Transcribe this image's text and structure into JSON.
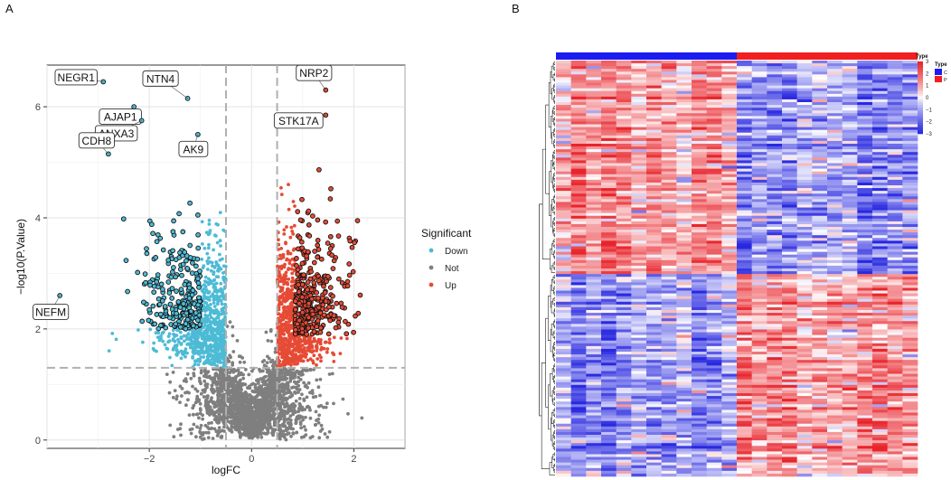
{
  "panels": {
    "a_label": "A",
    "b_label": "B"
  },
  "chart_data": [
    {
      "type": "scatter",
      "subtype": "volcano",
      "title": "",
      "xlabel": "logFC",
      "ylabel": "−log10(P.Value)",
      "xlim": [
        -4,
        3
      ],
      "ylim": [
        -0.15,
        6.75
      ],
      "x_ticks": [
        -2,
        0,
        2
      ],
      "x_tick_labels": [
        "−2",
        "0",
        "2"
      ],
      "y_ticks": [
        0,
        2,
        4,
        6
      ],
      "y_tick_labels": [
        "0",
        "2",
        "4",
        "6"
      ],
      "grid": true,
      "thresholds": {
        "logFC": [
          -0.5,
          0.5
        ],
        "neg_log10_p": 1.3
      },
      "legend": {
        "title": "Significant",
        "position": "right",
        "entries": [
          {
            "name": "Down",
            "color": "#4dbbd5"
          },
          {
            "name": "Not",
            "color": "#7f7f7f"
          },
          {
            "name": "Up",
            "color": "#e64b35"
          }
        ]
      },
      "labeled_genes": [
        {
          "name": "NEGR1",
          "x": -2.9,
          "y": 6.45
        },
        {
          "name": "AJAP1",
          "x": -2.3,
          "y": 6.0
        },
        {
          "name": "NTN4",
          "x": -1.25,
          "y": 6.15
        },
        {
          "name": "ANXA3",
          "x": -2.15,
          "y": 5.75
        },
        {
          "name": "AK9",
          "x": -1.05,
          "y": 5.5
        },
        {
          "name": "CDH8",
          "x": -2.8,
          "y": 5.15
        },
        {
          "name": "NRP2",
          "x": 1.45,
          "y": 6.3
        },
        {
          "name": "STK17A",
          "x": 1.45,
          "y": 5.85
        },
        {
          "name": "NEFM",
          "x": -3.75,
          "y": 2.6
        }
      ]
    },
    {
      "type": "heatmap",
      "title": "",
      "annotation_title": "Type",
      "groups": [
        {
          "name": "C",
          "color": "#1c1cf0",
          "n_samples": 12
        },
        {
          "name": "P",
          "color": "#f02020",
          "n_samples": 12
        }
      ],
      "colorbar": {
        "ticks": [
          3,
          2,
          1,
          0,
          -1,
          -2,
          -3
        ],
        "tick_labels": [
          "3",
          "2",
          "1",
          "0",
          "−1",
          "−2",
          "−3"
        ],
        "low_color": "#2929e0",
        "mid_color": "#ffffff",
        "high_color": "#e8242b"
      },
      "gene_clusters": [
        {
          "name": "up_in_C",
          "fraction": 0.51
        },
        {
          "name": "up_in_P",
          "fraction": 0.49
        }
      ],
      "row_dendrogram": true
    }
  ]
}
